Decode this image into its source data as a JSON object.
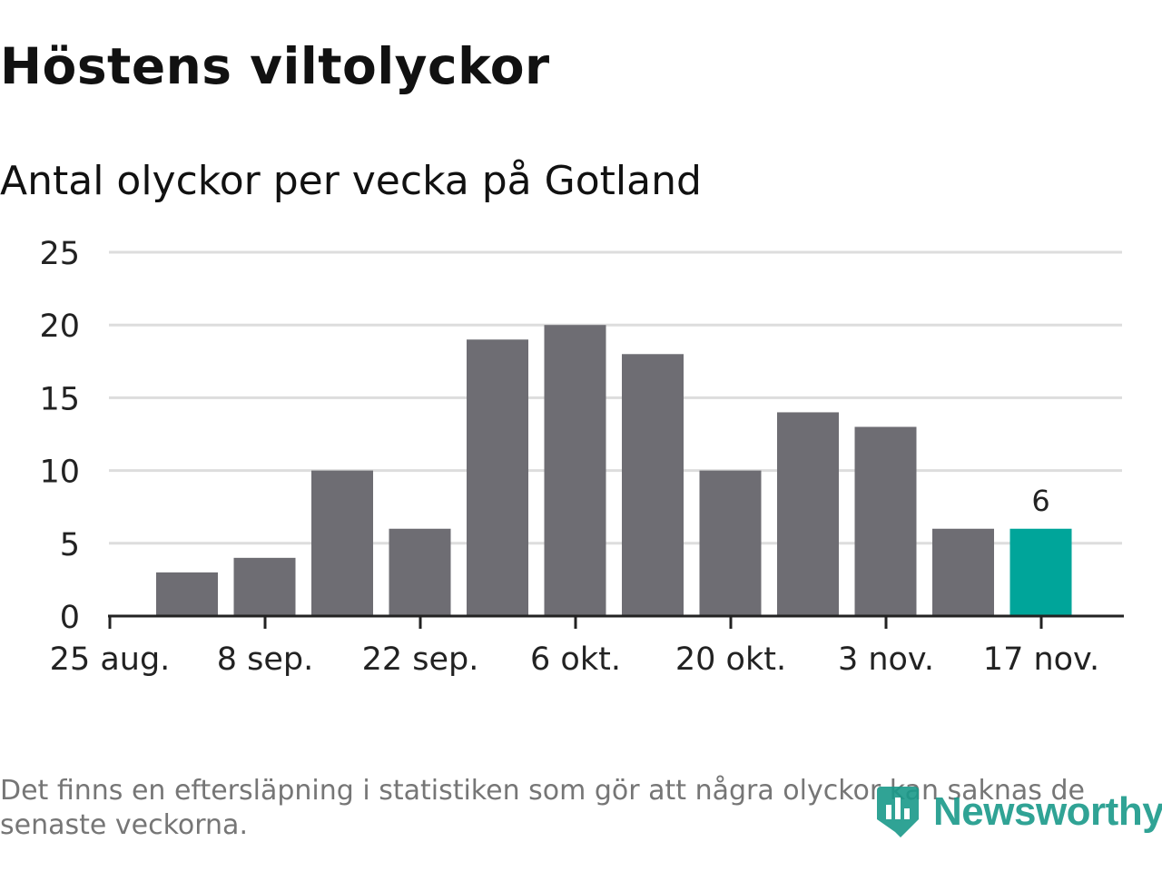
{
  "title": "Höstens viltolyckor",
  "subtitle": "Antal olyckor per vecka på Gotland",
  "note": "Det finns en eftersläpning i statistiken som gör att några olyckor kan saknas de senaste veckorna.",
  "logo": {
    "text": "Newsworthy",
    "icon": "newsworthy-logo-icon"
  },
  "colors": {
    "bar": "#6e6d73",
    "highlight": "#00a59a",
    "grid": "#dddddd",
    "axis": "#222222"
  },
  "chart_data": {
    "type": "bar",
    "title": "Höstens viltolyckor",
    "subtitle": "Antal olyckor per vecka på Gotland",
    "xlabel": "",
    "ylabel": "",
    "ylim": [
      0,
      25
    ],
    "yticks": [
      0,
      5,
      10,
      15,
      20,
      25
    ],
    "xtick_labels": [
      "25 aug.",
      "8 sep.",
      "22 sep.",
      "6 okt.",
      "20 okt.",
      "3 nov.",
      "17 nov."
    ],
    "values": [
      3,
      4,
      10,
      6,
      19,
      20,
      18,
      10,
      14,
      13,
      6,
      6
    ],
    "highlight_index": 11,
    "data_labels": [
      {
        "index": 11,
        "text": "6"
      }
    ],
    "grid": true,
    "legend": "none"
  }
}
